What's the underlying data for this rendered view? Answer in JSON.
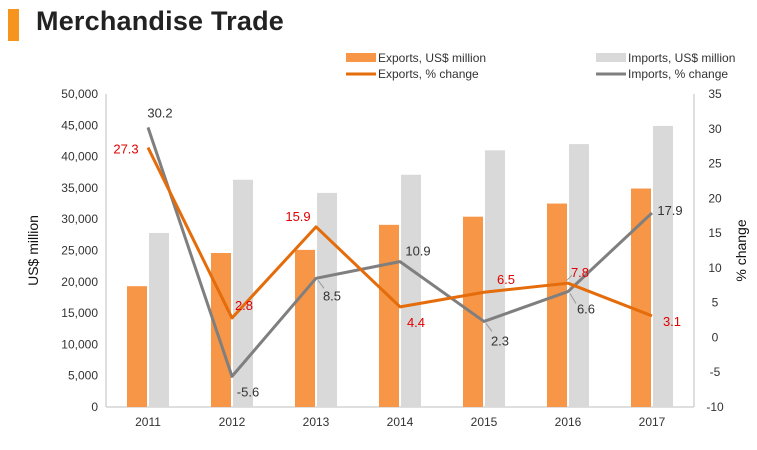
{
  "header": {
    "title": "Merchandise Trade"
  },
  "colors": {
    "exports_bar": "#f79646",
    "imports_bar": "#d9d9d9",
    "exports_line": "#e46c0a",
    "imports_line": "#7f7f7f",
    "exports_label": "#e00000",
    "imports_label": "#333333",
    "title_accent": "#f7941d"
  },
  "chart_data": {
    "type": "bar",
    "categories": [
      "2011",
      "2012",
      "2013",
      "2014",
      "2015",
      "2016",
      "2017"
    ],
    "series": [
      {
        "name": "Exports, US$ million",
        "kind": "bar",
        "axis": "left",
        "values": [
          19300,
          24600,
          25100,
          29100,
          30400,
          32500,
          34900
        ]
      },
      {
        "name": "Imports, US$ million",
        "kind": "bar",
        "axis": "left",
        "values": [
          27800,
          36300,
          34200,
          37100,
          41000,
          42000,
          44900
        ]
      },
      {
        "name": "Exports, % change",
        "kind": "line",
        "axis": "right",
        "values": [
          27.3,
          2.8,
          15.9,
          4.4,
          6.5,
          7.8,
          3.1
        ]
      },
      {
        "name": "Imports, % change",
        "kind": "line",
        "axis": "right",
        "values": [
          30.2,
          -5.6,
          8.5,
          10.9,
          2.3,
          6.6,
          17.9
        ]
      }
    ],
    "ylabel": "US$ million",
    "y2label": "% change",
    "ylim": [
      0,
      50000
    ],
    "y2lim": [
      -10,
      35
    ],
    "yticks": [
      "0",
      "5,000",
      "10,000",
      "15,000",
      "20,000",
      "25,000",
      "30,000",
      "35,000",
      "40,000",
      "45,000",
      "50,000"
    ],
    "y2ticks": [
      "-10",
      "-5",
      "0",
      "5",
      "10",
      "15",
      "20",
      "25",
      "30",
      "35"
    ],
    "grid": false,
    "legend_position": "top-right"
  }
}
